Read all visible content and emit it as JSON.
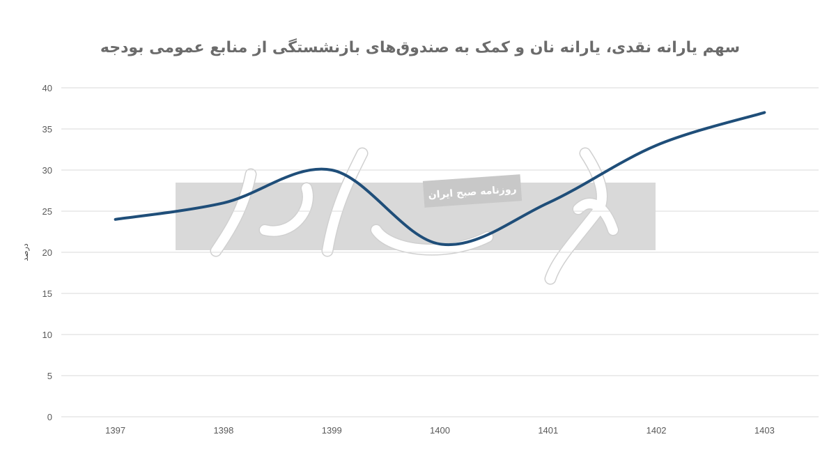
{
  "chart_data": {
    "type": "line",
    "title": "سهم یارانه نقدی، یارانه نان و کمک به صندوق‌های بازنشستگی از منابع عمومی بودجه",
    "xlabel": "",
    "ylabel": "درصد",
    "categories": [
      "1397",
      "1398",
      "1399",
      "1400",
      "1401",
      "1402",
      "1403"
    ],
    "series": [
      {
        "values": [
          24,
          26,
          30,
          21,
          26,
          33,
          37
        ],
        "color": "#1f4e79",
        "smooth": true
      }
    ],
    "ylim": [
      0,
      40
    ],
    "yticks": [
      "0",
      "5",
      "10",
      "15",
      "20",
      "25",
      "30",
      "35",
      "40"
    ],
    "grid": true,
    "legend": "none"
  },
  "watermark": {
    "logo_text": "دنیای اقتصاد",
    "tagline": "روزنامه صبح ایران"
  }
}
